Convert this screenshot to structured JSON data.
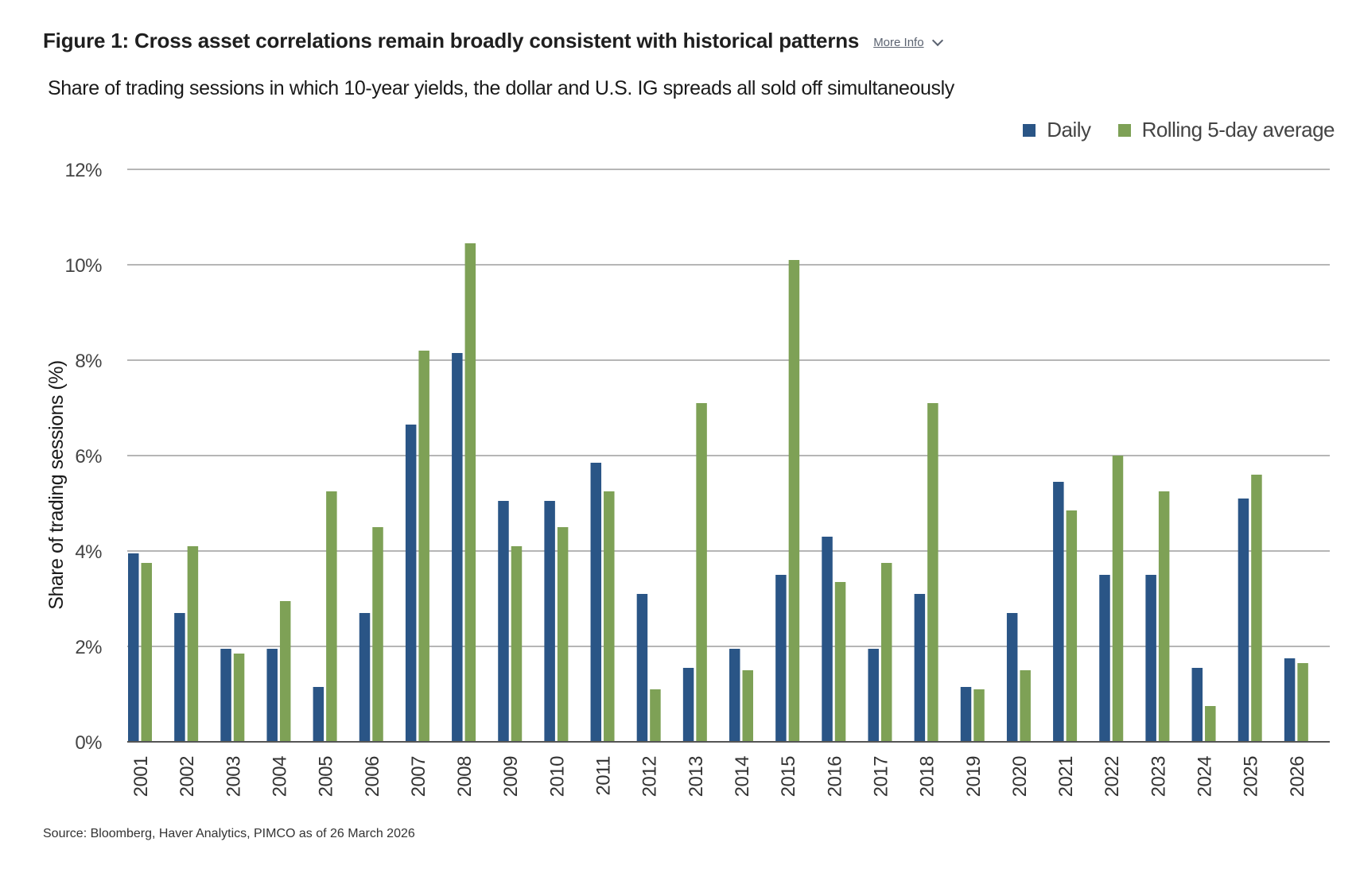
{
  "header": {
    "title": "Figure 1: Cross asset correlations remain broadly consistent with historical patterns",
    "more_info_label": "More Info"
  },
  "subtitle": "Share of trading sessions in which 10-year yields, the dollar and U.S. IG spreads all sold off simultaneously",
  "source": "Source: Bloomberg, Haver Analytics, PIMCO as of 26 March 2026",
  "icons": {
    "more_info": "chevron-down-icon"
  },
  "colors": {
    "daily": "#2a5586",
    "rolling": "#7ea156",
    "grid": "#8a8a8a",
    "axis": "#555555"
  },
  "chart_data": {
    "type": "bar",
    "title": "",
    "xlabel": "",
    "ylabel": "Share of trading sessions (%)",
    "ylim": [
      0,
      12
    ],
    "yticks": [
      0,
      2,
      4,
      6,
      8,
      10,
      12
    ],
    "ytick_labels": [
      "0%",
      "2%",
      "4%",
      "6%",
      "8%",
      "10%",
      "12%"
    ],
    "grid": true,
    "legend": "top-right",
    "categories": [
      "2001",
      "2002",
      "2003",
      "2004",
      "2005",
      "2006",
      "2007",
      "2008",
      "2009",
      "2010",
      "2011",
      "2012",
      "2013",
      "2014",
      "2015",
      "2016",
      "2017",
      "2018",
      "2019",
      "2020",
      "2021",
      "2022",
      "2023",
      "2024",
      "2025",
      "2026"
    ],
    "series": [
      {
        "name": "Daily",
        "color": "#2a5586",
        "values": [
          3.95,
          2.7,
          1.95,
          1.95,
          1.15,
          2.7,
          6.65,
          8.15,
          5.05,
          5.05,
          5.85,
          3.1,
          1.55,
          1.95,
          3.5,
          4.3,
          1.95,
          3.1,
          1.15,
          2.7,
          5.45,
          3.5,
          3.5,
          1.55,
          5.1,
          1.75
        ]
      },
      {
        "name": "Rolling 5-day average",
        "color": "#7ea156",
        "values": [
          3.75,
          4.1,
          1.85,
          2.95,
          5.25,
          4.5,
          8.2,
          10.45,
          4.1,
          4.5,
          5.25,
          1.1,
          7.1,
          1.5,
          10.1,
          3.35,
          3.75,
          7.1,
          1.1,
          1.5,
          4.85,
          6.0,
          5.25,
          0.75,
          5.6,
          1.65
        ]
      }
    ]
  }
}
